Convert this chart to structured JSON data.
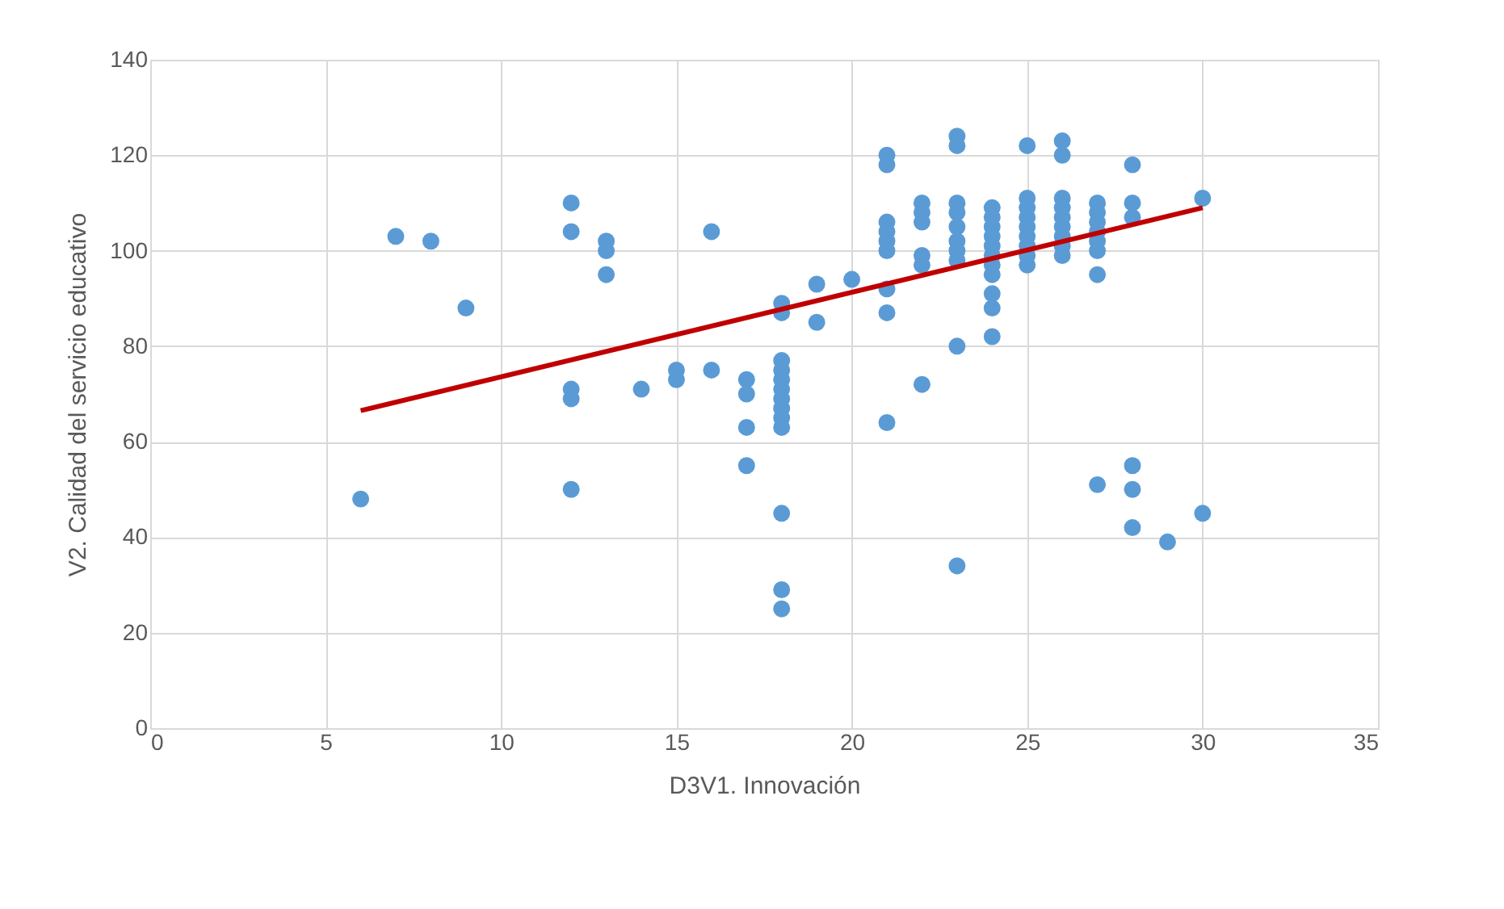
{
  "chart_data": {
    "type": "scatter",
    "xlabel": "D3V1. Innovación",
    "ylabel": "V2. Calidad del servicio educativo",
    "xlim": [
      0,
      35
    ],
    "xticks": [
      0,
      5,
      10,
      15,
      20,
      25,
      30,
      35
    ],
    "ylim": [
      0,
      140
    ],
    "yticks": [
      0,
      20,
      40,
      60,
      80,
      100,
      120,
      140
    ],
    "grid": true,
    "legend": false,
    "series": [
      {
        "color": "#5b9bd5",
        "marker": "circle",
        "x": [
          6,
          7,
          8,
          9,
          12,
          12,
          12,
          12,
          12,
          13,
          13,
          13,
          14,
          15,
          15,
          16,
          16,
          17,
          17,
          17,
          17,
          18,
          18,
          18,
          18,
          18,
          18,
          18,
          18,
          18,
          18,
          18,
          18,
          18,
          19,
          19,
          20,
          21,
          21,
          21,
          21,
          21,
          21,
          21,
          21,
          21,
          22,
          22,
          22,
          22,
          22,
          22,
          23,
          23,
          23,
          23,
          23,
          23,
          23,
          23,
          23,
          23,
          24,
          24,
          24,
          24,
          24,
          24,
          24,
          24,
          24,
          24,
          24,
          25,
          25,
          25,
          25,
          25,
          25,
          25,
          25,
          25,
          26,
          26,
          26,
          26,
          26,
          26,
          26,
          26,
          26,
          27,
          27,
          27,
          27,
          27,
          27,
          27,
          27,
          28,
          28,
          28,
          28,
          28,
          28,
          29,
          30,
          30
        ],
        "values": [
          48,
          103,
          102,
          88,
          110,
          104,
          71,
          69,
          50,
          102,
          100,
          95,
          71,
          75,
          73,
          75,
          104,
          73,
          70,
          63,
          55,
          89,
          87,
          77,
          75,
          73,
          71,
          69,
          67,
          65,
          63,
          45,
          29,
          25,
          93,
          85,
          94,
          120,
          118,
          106,
          104,
          102,
          100,
          92,
          87,
          64,
          110,
          108,
          106,
          99,
          97,
          72,
          124,
          122,
          110,
          108,
          105,
          102,
          100,
          98,
          80,
          34,
          109,
          107,
          105,
          103,
          101,
          99,
          97,
          95,
          91,
          88,
          82,
          122,
          111,
          109,
          107,
          105,
          103,
          101,
          99,
          97,
          123,
          120,
          111,
          109,
          107,
          105,
          103,
          101,
          99,
          110,
          108,
          106,
          104,
          102,
          100,
          95,
          51,
          118,
          110,
          107,
          55,
          50,
          42,
          39,
          111,
          45
        ]
      },
      {
        "type": "line",
        "color": "#c00000",
        "x": [
          6,
          30
        ],
        "values": [
          66.5,
          109
        ]
      }
    ]
  }
}
